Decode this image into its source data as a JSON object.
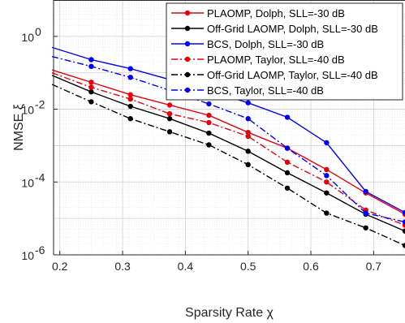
{
  "chart_data": {
    "type": "line",
    "xlabel": "Sparsity Rate χ",
    "ylabel": "NMSE ξ",
    "y_scale": "log",
    "xlim": [
      0.19,
      0.75
    ],
    "ylim": [
      1e-06,
      10
    ],
    "grid": true,
    "minor_grid": true,
    "legend_position": "top-right",
    "x_ticks": [
      0.2,
      0.3,
      0.4,
      0.5,
      0.6,
      0.7
    ],
    "x_tick_labels": [
      "0.2",
      "0.3",
      "0.4",
      "0.5",
      "0.6",
      "0.7"
    ],
    "y_ticks": [
      1e-06,
      0.0001,
      0.01,
      1
    ],
    "y_tick_labels": [
      {
        "base": "10",
        "exp": "-6"
      },
      {
        "base": "10",
        "exp": "-4"
      },
      {
        "base": "10",
        "exp": "-2"
      },
      {
        "base": "10",
        "exp": "0"
      }
    ],
    "x": [
      0.1875,
      0.25,
      0.3125,
      0.375,
      0.4375,
      0.5,
      0.5625,
      0.625,
      0.6875,
      0.75
    ],
    "series": [
      {
        "name": "PLAOMP, Dolph, SLL=-30 dB",
        "color": "#e8000b",
        "dash": "solid",
        "values": [
          0.12,
          0.055,
          0.025,
          0.013,
          0.0068,
          0.0023,
          0.00085,
          0.00022,
          5e-05,
          1.3e-05
        ]
      },
      {
        "name": "Off-Grid LAOMP, Dolph, SLL=-30 dB",
        "color": "#000000",
        "dash": "solid",
        "values": [
          0.085,
          0.03,
          0.012,
          0.0055,
          0.0022,
          0.0007,
          0.00018,
          5e-05,
          1.3e-05,
          4.5e-06
        ]
      },
      {
        "name": "BCS, Dolph, SLL=-30 dB",
        "color": "#0000ff",
        "dash": "solid",
        "values": [
          0.5,
          0.23,
          0.13,
          0.065,
          0.032,
          0.015,
          0.006,
          0.0012,
          5.5e-05,
          1.45e-05
        ]
      },
      {
        "name": "PLAOMP, Taylor, SLL=-40 dB",
        "color": "#e8000b",
        "dash": "dashdot",
        "values": [
          0.1,
          0.04,
          0.019,
          0.0075,
          0.0043,
          0.0018,
          0.00035,
          0.0001,
          1.7e-05,
          6.5e-06
        ]
      },
      {
        "name": "Off-Grid LAOMP, Taylor, SLL=-40 dB",
        "color": "#000000",
        "dash": "dashdot",
        "values": [
          0.048,
          0.016,
          0.0055,
          0.0024,
          0.00105,
          0.0003,
          6.8e-05,
          1.4e-05,
          5.5e-06,
          1.8e-06
        ]
      },
      {
        "name": "BCS, Taylor, SLL=-40 dB",
        "color": "#0000ff",
        "dash": "dashdot",
        "values": [
          0.28,
          0.15,
          0.075,
          0.033,
          0.014,
          0.0055,
          0.00085,
          0.00015,
          1.4e-05,
          8e-06
        ]
      }
    ]
  }
}
